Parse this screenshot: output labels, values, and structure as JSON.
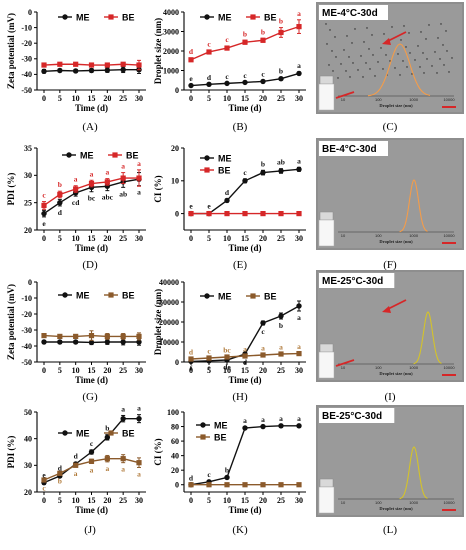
{
  "colors": {
    "ME": "#111111",
    "BE": "#d62728",
    "BE25": "#8b5a2b",
    "curveME4": "#f39c4a",
    "curveYellow": "#d4c32a"
  },
  "chart_data": [
    {
      "id": "A",
      "panel_label": "(A)",
      "type": "line",
      "ylabel": "Zeta potential (mV)",
      "xlabel": "Time (d)",
      "x": [
        0,
        5,
        10,
        15,
        20,
        25,
        30
      ],
      "xticks": [
        "0",
        "5",
        "10",
        "15",
        "20",
        "25",
        "30"
      ],
      "ylim": [
        -50,
        0
      ],
      "yticks": [
        "-50",
        "-40",
        "-30",
        "-20",
        "-10",
        "0"
      ],
      "legend": [
        "ME",
        "BE"
      ],
      "series": [
        {
          "name": "ME",
          "values": [
            -38,
            -37.5,
            -37.8,
            -37.5,
            -37.3,
            -37,
            -37
          ],
          "errors": [
            1.2,
            1,
            1,
            1.2,
            1.4,
            1.8,
            2.4
          ],
          "labels": [],
          "label_pos": "below"
        },
        {
          "name": "BE",
          "values": [
            -34,
            -33.5,
            -33.5,
            -34,
            -34,
            -33.5,
            -34
          ],
          "errors": [
            1,
            1,
            1,
            1,
            1,
            1,
            3
          ],
          "labels": [],
          "label_pos": "above"
        }
      ]
    },
    {
      "id": "B",
      "panel_label": "(B)",
      "type": "line",
      "ylabel": "Droplet size (nm)",
      "xlabel": "Time (d)",
      "x": [
        0,
        5,
        10,
        15,
        20,
        25,
        30
      ],
      "xticks": [
        "0",
        "5",
        "10",
        "15",
        "20",
        "25",
        "30"
      ],
      "ylim": [
        0,
        4000
      ],
      "yticks": [
        "0",
        "1000",
        "2000",
        "3000",
        "4000"
      ],
      "legend": [
        "ME",
        "BE"
      ],
      "series": [
        {
          "name": "ME",
          "values": [
            230,
            290,
            340,
            390,
            440,
            580,
            850
          ],
          "errors": [
            30,
            30,
            30,
            30,
            40,
            50,
            80
          ],
          "labels": [
            "e",
            "d",
            "c",
            "c",
            "c",
            "b",
            "a"
          ],
          "label_pos": "above"
        },
        {
          "name": "BE",
          "values": [
            1550,
            1950,
            2150,
            2450,
            2550,
            2950,
            3250
          ],
          "errors": [
            80,
            80,
            100,
            100,
            100,
            250,
            350
          ],
          "labels": [
            "d",
            "c",
            "c",
            "b",
            "b",
            "b",
            "a"
          ],
          "label_pos": "above"
        }
      ]
    },
    {
      "id": "D",
      "panel_label": "(D)",
      "type": "line",
      "ylabel": "PDI (%)",
      "xlabel": "Time (d)",
      "x": [
        0,
        5,
        10,
        15,
        20,
        25,
        30
      ],
      "xticks": [
        "0",
        "5",
        "10",
        "15",
        "20",
        "25",
        "30"
      ],
      "ylim": [
        20,
        35
      ],
      "yticks": [
        "20",
        "25",
        "30",
        "35"
      ],
      "legend": [
        "ME",
        "BE"
      ],
      "series": [
        {
          "name": "ME",
          "values": [
            23,
            25,
            26.8,
            27.8,
            28,
            28.8,
            29.3
          ],
          "errors": [
            0.6,
            0.6,
            0.6,
            0.8,
            0.8,
            1,
            1.2
          ],
          "labels": [
            "e",
            "d",
            "cd",
            "bc",
            "abc",
            "ab",
            "a"
          ],
          "label_pos": "below"
        },
        {
          "name": "BE",
          "values": [
            24.5,
            26.5,
            27.5,
            28.5,
            28.8,
            29.5,
            29.5
          ],
          "errors": [
            0.7,
            0.6,
            0.6,
            0.6,
            0.6,
            1,
            1.5
          ],
          "labels": [
            "c",
            "b",
            "a",
            "a",
            "a",
            "a",
            "a"
          ],
          "label_pos": "above"
        }
      ]
    },
    {
      "id": "E",
      "panel_label": "(E)",
      "type": "line",
      "ylabel": "CI (%)",
      "xlabel": "Time (d)",
      "x": [
        0,
        5,
        10,
        15,
        20,
        25,
        30
      ],
      "xticks": [
        "0",
        "5",
        "10",
        "15",
        "20",
        "25",
        "30"
      ],
      "ylim": [
        -5,
        20
      ],
      "yticks": [
        "0",
        "10",
        "20"
      ],
      "legend": [
        "ME",
        "BE"
      ],
      "series": [
        {
          "name": "ME",
          "values": [
            0,
            0,
            4,
            10,
            12.5,
            13,
            13.5
          ],
          "errors": [
            0.3,
            0.3,
            0.5,
            0.6,
            0.7,
            0.7,
            0.6
          ],
          "labels": [
            "e",
            "e",
            "d",
            "c",
            "b",
            "ab",
            "a"
          ],
          "label_pos": "above"
        },
        {
          "name": "BE",
          "values": [
            0,
            0,
            0,
            0,
            0,
            0,
            0
          ],
          "errors": [
            0,
            0,
            0,
            0,
            0,
            0,
            0
          ],
          "labels": [],
          "label_pos": "above"
        }
      ]
    },
    {
      "id": "G",
      "panel_label": "(G)",
      "type": "line",
      "ylabel": "Zeta potential (mV)",
      "xlabel": "Time (d)",
      "x": [
        0,
        5,
        10,
        15,
        20,
        25,
        30
      ],
      "xticks": [
        "0",
        "5",
        "10",
        "15",
        "20",
        "25",
        "30"
      ],
      "ylim": [
        -50,
        0
      ],
      "yticks": [
        "-50",
        "-40",
        "-30",
        "-20",
        "-10",
        "0"
      ],
      "legend": [
        "ME",
        "BE"
      ],
      "series": [
        {
          "name": "ME",
          "values": [
            -37.5,
            -37.5,
            -37.5,
            -37.8,
            -37.5,
            -37.5,
            -37.5
          ],
          "errors": [
            1,
            1,
            1,
            1.3,
            1.5,
            1.8,
            2
          ],
          "labels": [],
          "label_pos": "below"
        },
        {
          "name": "BE",
          "values": [
            -33.5,
            -34,
            -34,
            -33.5,
            -34,
            -34,
            -34
          ],
          "errors": [
            1,
            1,
            1,
            3,
            1.8,
            1.8,
            2.2
          ],
          "labels": [],
          "label_pos": "above"
        }
      ]
    },
    {
      "id": "H",
      "panel_label": "(H)",
      "type": "line",
      "ylabel": "Droplet size (nm)",
      "xlabel": "Time (d)",
      "x": [
        0,
        5,
        10,
        15,
        20,
        25,
        30
      ],
      "xticks": [
        "0",
        "5",
        "10",
        "15",
        "20",
        "25",
        "30"
      ],
      "ylim": [
        0,
        40000
      ],
      "yticks": [
        "0",
        "10000",
        "20000",
        "30000",
        "40000"
      ],
      "legend": [
        "ME",
        "BE"
      ],
      "series": [
        {
          "name": "ME",
          "values": [
            300,
            600,
            1000,
            4000,
            19500,
            23000,
            28000
          ],
          "errors": [
            100,
            200,
            300,
            800,
            1000,
            1500,
            2500
          ],
          "labels": [
            "f",
            "e",
            "de",
            "d",
            "c",
            "b",
            "a"
          ],
          "label_pos": "below"
        },
        {
          "name": "BE",
          "values": [
            1500,
            2000,
            2500,
            3000,
            3500,
            4000,
            4200
          ],
          "errors": [
            150,
            150,
            200,
            200,
            250,
            250,
            300
          ],
          "labels": [
            "d",
            "c",
            "bc",
            "a",
            "a",
            "a",
            "a"
          ],
          "label_pos": "above"
        }
      ]
    },
    {
      "id": "J",
      "panel_label": "(J)",
      "type": "line",
      "ylabel": "PDI (%)",
      "xlabel": "Time (d)",
      "x": [
        0,
        5,
        10,
        15,
        20,
        25,
        30
      ],
      "xticks": [
        "0",
        "5",
        "10",
        "15",
        "20",
        "25",
        "30"
      ],
      "ylim": [
        20,
        50
      ],
      "yticks": [
        "20",
        "30",
        "40",
        "50"
      ],
      "legend": [
        "ME",
        "BE"
      ],
      "series": [
        {
          "name": "ME",
          "values": [
            23.5,
            26,
            30.5,
            35,
            40.5,
            47.5,
            47.5
          ],
          "errors": [
            0.5,
            0.5,
            0.6,
            0.8,
            1,
            1.2,
            1.5
          ],
          "labels": [
            "e",
            "d",
            "d",
            "c",
            "b",
            "a",
            "a"
          ],
          "label_pos": "above"
        },
        {
          "name": "BE",
          "values": [
            24.5,
            27,
            30,
            31.5,
            32.5,
            32.5,
            31
          ],
          "errors": [
            0.5,
            0.5,
            0.6,
            0.8,
            1.2,
            1.5,
            1.8
          ],
          "labels": [
            "c",
            "b",
            "a",
            "a",
            "a",
            "a",
            "a"
          ],
          "label_pos": "below"
        }
      ]
    },
    {
      "id": "K",
      "panel_label": "(K)",
      "type": "line",
      "ylabel": "CI (%)",
      "xlabel": "Time (d)",
      "x": [
        0,
        5,
        10,
        15,
        20,
        25,
        30
      ],
      "xticks": [
        "0",
        "5",
        "10",
        "15",
        "20",
        "25",
        "30"
      ],
      "ylim": [
        -10,
        100
      ],
      "yticks": [
        "0",
        "20",
        "40",
        "60",
        "80",
        "100"
      ],
      "legend": [
        "ME",
        "BE"
      ],
      "series": [
        {
          "name": "ME",
          "values": [
            0,
            4,
            10,
            78,
            80,
            81,
            81
          ],
          "errors": [
            0.5,
            0.8,
            1,
            1.5,
            1,
            1,
            1
          ],
          "labels": [
            "d",
            "c",
            "b",
            "a",
            "a",
            "a",
            "a"
          ],
          "label_pos": "above"
        },
        {
          "name": "BE",
          "values": [
            0,
            0,
            0,
            0,
            0,
            0,
            0
          ],
          "errors": [
            0,
            0,
            0,
            0,
            0,
            0,
            0
          ],
          "labels": [],
          "label_pos": "above"
        }
      ]
    }
  ],
  "micrographs": [
    {
      "id": "C",
      "panel_label": "(C)",
      "title": "ME-4°C-30d",
      "xlabel": "Droplet size (nm)",
      "ticks": [
        "10",
        "100",
        "1000",
        "10000"
      ]
    },
    {
      "id": "F",
      "panel_label": "(F)",
      "title": "BE-4°C-30d",
      "xlabel": "Droplet size (nm)",
      "ticks": [
        "10",
        "100",
        "1000",
        "10000"
      ]
    },
    {
      "id": "I",
      "panel_label": "(I)",
      "title": "ME-25°C-30d",
      "xlabel": "Droplet size (nm)",
      "ticks": [
        "10",
        "100",
        "1000",
        "10000"
      ]
    },
    {
      "id": "L",
      "panel_label": "(L)",
      "title": "BE-25°C-30d",
      "xlabel": "Droplet size (nm)",
      "ticks": [
        "10",
        "100",
        "1000",
        "10000"
      ]
    }
  ]
}
